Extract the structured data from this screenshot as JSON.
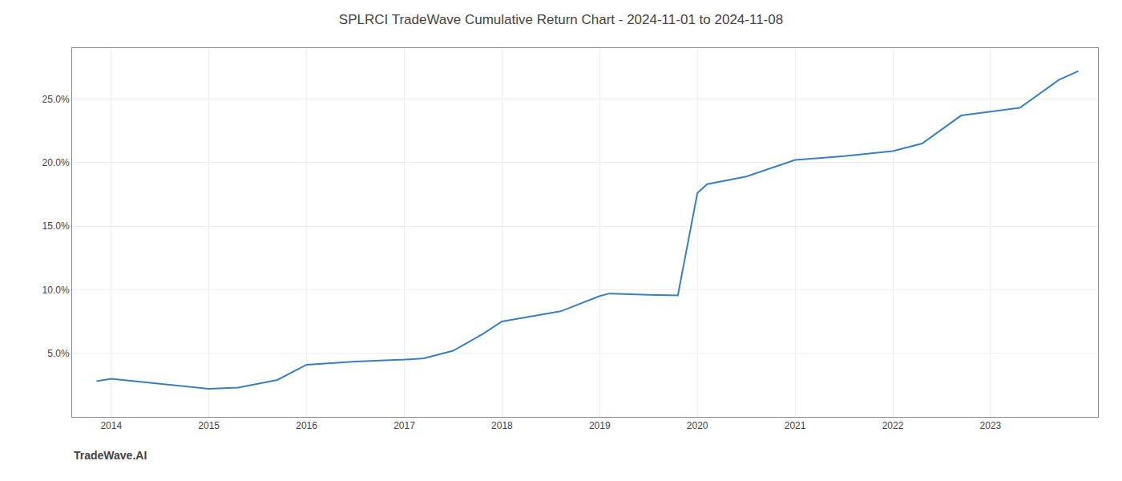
{
  "chart_data": {
    "type": "line",
    "title": "SPLRCI TradeWave Cumulative Return Chart - 2024-11-01 to 2024-11-08",
    "annotations": [
      "TradeWave.AI"
    ],
    "x": [
      2013.85,
      2014.0,
      2014.5,
      2015.0,
      2015.3,
      2015.7,
      2016.0,
      2016.5,
      2017.0,
      2017.2,
      2017.5,
      2017.8,
      2018.0,
      2018.3,
      2018.6,
      2019.0,
      2019.1,
      2019.5,
      2019.8,
      2020.0,
      2020.1,
      2020.5,
      2021.0,
      2021.5,
      2022.0,
      2022.3,
      2022.7,
      2023.0,
      2023.3,
      2023.7,
      2023.9
    ],
    "values": [
      2.8,
      3.0,
      2.6,
      2.2,
      2.3,
      2.9,
      4.1,
      4.35,
      4.5,
      4.6,
      5.2,
      6.5,
      7.5,
      7.9,
      8.3,
      9.5,
      9.7,
      9.6,
      9.55,
      17.6,
      18.3,
      18.9,
      20.2,
      20.5,
      20.9,
      21.5,
      23.7,
      24.0,
      24.3,
      26.5,
      27.2
    ],
    "color": "#3a7fc1",
    "xlim": [
      2013.6,
      2024.1
    ],
    "xticks": [
      2014,
      2015,
      2016,
      2017,
      2018,
      2019,
      2020,
      2021,
      2022,
      2023
    ],
    "ylim": [
      0,
      29
    ],
    "yticks": [
      {
        "value": 5.0,
        "label": "5.0%"
      },
      {
        "value": 10.0,
        "label": "10.0%"
      },
      {
        "value": 15.0,
        "label": "15.0%"
      },
      {
        "value": 20.0,
        "label": "20.0%"
      },
      {
        "value": 25.0,
        "label": "25.0%"
      }
    ],
    "grid": true
  }
}
